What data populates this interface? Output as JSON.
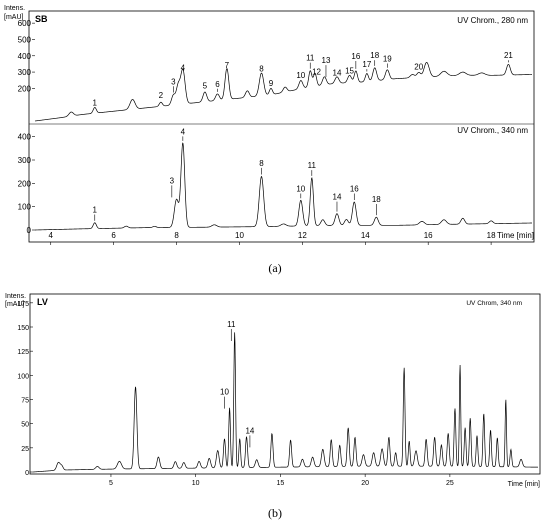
{
  "chart_data": [
    {
      "type": "line",
      "panel": "a",
      "caption": "(a)",
      "sample": "SB",
      "y_unit_label": [
        "Intens.",
        "[mAU]"
      ],
      "x_axis_label": "Time [min]",
      "xlim": [
        3.5,
        19.3
      ],
      "x_ticks": [
        4,
        6,
        8,
        10,
        12,
        14,
        16,
        18
      ],
      "traces": [
        {
          "name": "UV Chrom., 280 nm",
          "ylim": [
            0,
            650
          ],
          "y_ticks": [
            200,
            300,
            400,
            500,
            600
          ],
          "baseline": [
            [
              3.5,
              0
            ],
            [
              4.3,
              20
            ],
            [
              5.0,
              40
            ],
            [
              6.0,
              60
            ],
            [
              7.0,
              80
            ],
            [
              8.0,
              100
            ],
            [
              9.0,
              120
            ],
            [
              10.0,
              140
            ],
            [
              11.0,
              160
            ],
            [
              12.0,
              200
            ],
            [
              13.0,
              230
            ],
            [
              14.0,
              240
            ],
            [
              15.0,
              260
            ],
            [
              16.0,
              270
            ],
            [
              17.0,
              280
            ],
            [
              18.0,
              280
            ],
            [
              19.3,
              285
            ]
          ],
          "peaks": [
            [
              4.65,
              25,
              0.07
            ],
            [
              5.4,
              35,
              0.05
            ],
            [
              6.6,
              60,
              0.08
            ],
            [
              7.5,
              25,
              0.05
            ],
            [
              7.9,
              60,
              0.06
            ],
            [
              8.05,
              110,
              0.06
            ],
            [
              8.2,
              210,
              0.07
            ],
            [
              8.9,
              60,
              0.06
            ],
            [
              9.3,
              40,
              0.06
            ],
            [
              9.6,
              190,
              0.06
            ],
            [
              10.25,
              40,
              0.06
            ],
            [
              10.7,
              140,
              0.07
            ],
            [
              11.0,
              40,
              0.05
            ],
            [
              11.45,
              30,
              0.06
            ],
            [
              11.95,
              50,
              0.06
            ],
            [
              12.25,
              100,
              0.05
            ],
            [
              12.4,
              80,
              0.05
            ],
            [
              12.7,
              50,
              0.06
            ],
            [
              13.1,
              40,
              0.06
            ],
            [
              13.5,
              45,
              0.06
            ],
            [
              13.7,
              70,
              0.05
            ],
            [
              14.05,
              50,
              0.05
            ],
            [
              14.3,
              80,
              0.06
            ],
            [
              14.7,
              60,
              0.06
            ],
            [
              15.5,
              20,
              0.07
            ],
            [
              15.7,
              30,
              0.06
            ],
            [
              15.95,
              90,
              0.08
            ],
            [
              16.5,
              30,
              0.1
            ],
            [
              17.1,
              20,
              0.1
            ],
            [
              17.7,
              15,
              0.1
            ],
            [
              18.55,
              65,
              0.06
            ]
          ],
          "peak_labels": [
            {
              "label": "1",
              "x": 5.4,
              "y": 95
            },
            {
              "label": "2",
              "x": 7.5,
              "y": 140
            },
            {
              "label": "3",
              "x": 7.9,
              "y": 225
            },
            {
              "label": "4",
              "x": 8.2,
              "y": 310
            },
            {
              "label": "5",
              "x": 8.9,
              "y": 200
            },
            {
              "label": "6",
              "x": 9.3,
              "y": 210
            },
            {
              "label": "7",
              "x": 9.6,
              "y": 325
            },
            {
              "label": "8",
              "x": 10.7,
              "y": 305
            },
            {
              "label": "9",
              "x": 11.0,
              "y": 215
            },
            {
              "label": "10",
              "x": 11.95,
              "y": 265
            },
            {
              "label": "11",
              "x": 12.25,
              "y": 370
            },
            {
              "label": "12",
              "x": 12.45,
              "y": 285
            },
            {
              "label": "13",
              "x": 12.75,
              "y": 355
            },
            {
              "label": "14",
              "x": 13.1,
              "y": 280
            },
            {
              "label": "15",
              "x": 13.5,
              "y": 290
            },
            {
              "label": "16",
              "x": 13.7,
              "y": 380
            },
            {
              "label": "17",
              "x": 14.05,
              "y": 330
            },
            {
              "label": "18",
              "x": 14.3,
              "y": 385
            },
            {
              "label": "19",
              "x": 14.7,
              "y": 365
            },
            {
              "label": "20",
              "x": 15.7,
              "y": 315
            },
            {
              "label": "21",
              "x": 18.55,
              "y": 385
            }
          ]
        },
        {
          "name": "UV Chrom., 340 nm",
          "ylim": [
            0,
            450
          ],
          "y_ticks": [
            0,
            100,
            200,
            300,
            400
          ],
          "baseline": [
            [
              3.5,
              0
            ],
            [
              5.0,
              5
            ],
            [
              7.0,
              10
            ],
            [
              9.0,
              12
            ],
            [
              11.0,
              15
            ],
            [
              13.0,
              20
            ],
            [
              15.0,
              20
            ],
            [
              17.0,
              25
            ],
            [
              19.3,
              30
            ]
          ],
          "peaks": [
            [
              5.4,
              25,
              0.05
            ],
            [
              6.4,
              8,
              0.06
            ],
            [
              7.3,
              5,
              0.06
            ],
            [
              8.0,
              120,
              0.07
            ],
            [
              8.2,
              360,
              0.06
            ],
            [
              9.2,
              10,
              0.08
            ],
            [
              10.7,
              215,
              0.07
            ],
            [
              11.4,
              10,
              0.08
            ],
            [
              11.95,
              110,
              0.06
            ],
            [
              12.3,
              205,
              0.05
            ],
            [
              12.65,
              25,
              0.06
            ],
            [
              13.1,
              50,
              0.06
            ],
            [
              13.4,
              25,
              0.06
            ],
            [
              13.65,
              100,
              0.06
            ],
            [
              14.35,
              35,
              0.06
            ],
            [
              15.8,
              15,
              0.08
            ],
            [
              16.5,
              20,
              0.08
            ],
            [
              17.1,
              25,
              0.06
            ],
            [
              18.0,
              12,
              0.06
            ]
          ],
          "peak_labels": [
            {
              "label": "1",
              "x": 5.4,
              "y": 75
            },
            {
              "label": "3",
              "x": 7.85,
              "y": 200
            },
            {
              "label": "4",
              "x": 8.2,
              "y": 410
            },
            {
              "label": "8",
              "x": 10.7,
              "y": 275
            },
            {
              "label": "10",
              "x": 11.95,
              "y": 165
            },
            {
              "label": "11",
              "x": 12.3,
              "y": 265
            },
            {
              "label": "14",
              "x": 13.1,
              "y": 130
            },
            {
              "label": "16",
              "x": 13.65,
              "y": 165
            },
            {
              "label": "18",
              "x": 14.35,
              "y": 120
            }
          ]
        }
      ]
    },
    {
      "type": "line",
      "panel": "b",
      "caption": "(b)",
      "sample": "LV",
      "y_unit_label": [
        "Intens.",
        "[mAU]"
      ],
      "x_axis_label": "Time [min]",
      "xlim": [
        0.4,
        30.2
      ],
      "x_ticks": [
        5,
        10,
        15,
        20,
        25
      ],
      "traces": [
        {
          "name": "UV Chrom, 340 nm",
          "ylim": [
            0,
            180
          ],
          "y_ticks": [
            0,
            25,
            50,
            75,
            100,
            125,
            150,
            175
          ],
          "baseline": [
            [
              0.4,
              0
            ],
            [
              2.0,
              2
            ],
            [
              5.0,
              3
            ],
            [
              10.0,
              4
            ],
            [
              15.0,
              5
            ],
            [
              20.0,
              6
            ],
            [
              25.0,
              6
            ],
            [
              30.2,
              5
            ]
          ],
          "peaks": [
            [
              1.9,
              8,
              0.1
            ],
            [
              2.1,
              4,
              0.08
            ],
            [
              4.2,
              3,
              0.1
            ],
            [
              5.5,
              8,
              0.12
            ],
            [
              6.45,
              85,
              0.08
            ],
            [
              7.8,
              12,
              0.08
            ],
            [
              8.8,
              7,
              0.08
            ],
            [
              9.3,
              6,
              0.08
            ],
            [
              10.2,
              7,
              0.08
            ],
            [
              10.8,
              10,
              0.08
            ],
            [
              11.3,
              18,
              0.08
            ],
            [
              11.7,
              30,
              0.06
            ],
            [
              12.0,
              62,
              0.05
            ],
            [
              12.3,
              140,
              0.05
            ],
            [
              12.6,
              30,
              0.05
            ],
            [
              13.0,
              32,
              0.06
            ],
            [
              13.6,
              8,
              0.08
            ],
            [
              14.5,
              35,
              0.06
            ],
            [
              15.6,
              28,
              0.06
            ],
            [
              16.3,
              8,
              0.08
            ],
            [
              16.9,
              10,
              0.08
            ],
            [
              17.5,
              18,
              0.08
            ],
            [
              18.0,
              28,
              0.06
            ],
            [
              18.5,
              22,
              0.06
            ],
            [
              19.0,
              40,
              0.06
            ],
            [
              19.4,
              30,
              0.06
            ],
            [
              19.9,
              12,
              0.08
            ],
            [
              20.5,
              14,
              0.08
            ],
            [
              21.0,
              18,
              0.08
            ],
            [
              21.4,
              30,
              0.06
            ],
            [
              21.8,
              14,
              0.06
            ],
            [
              22.3,
              102,
              0.05
            ],
            [
              22.6,
              26,
              0.05
            ],
            [
              23.0,
              16,
              0.08
            ],
            [
              23.6,
              28,
              0.06
            ],
            [
              24.1,
              30,
              0.06
            ],
            [
              24.5,
              22,
              0.06
            ],
            [
              24.9,
              34,
              0.06
            ],
            [
              25.3,
              60,
              0.05
            ],
            [
              25.6,
              105,
              0.04
            ],
            [
              25.9,
              40,
              0.05
            ],
            [
              26.2,
              50,
              0.05
            ],
            [
              26.6,
              32,
              0.05
            ],
            [
              27.0,
              55,
              0.05
            ],
            [
              27.4,
              38,
              0.05
            ],
            [
              27.8,
              30,
              0.05
            ],
            [
              28.3,
              70,
              0.04
            ],
            [
              28.6,
              18,
              0.05
            ],
            [
              29.2,
              8,
              0.08
            ]
          ],
          "peak_labels": [
            {
              "label": "10",
              "x": 11.7,
              "y": 80
            },
            {
              "label": "11",
              "x": 12.1,
              "y": 150
            },
            {
              "label": "14",
              "x": 13.2,
              "y": 40
            }
          ]
        }
      ]
    }
  ]
}
